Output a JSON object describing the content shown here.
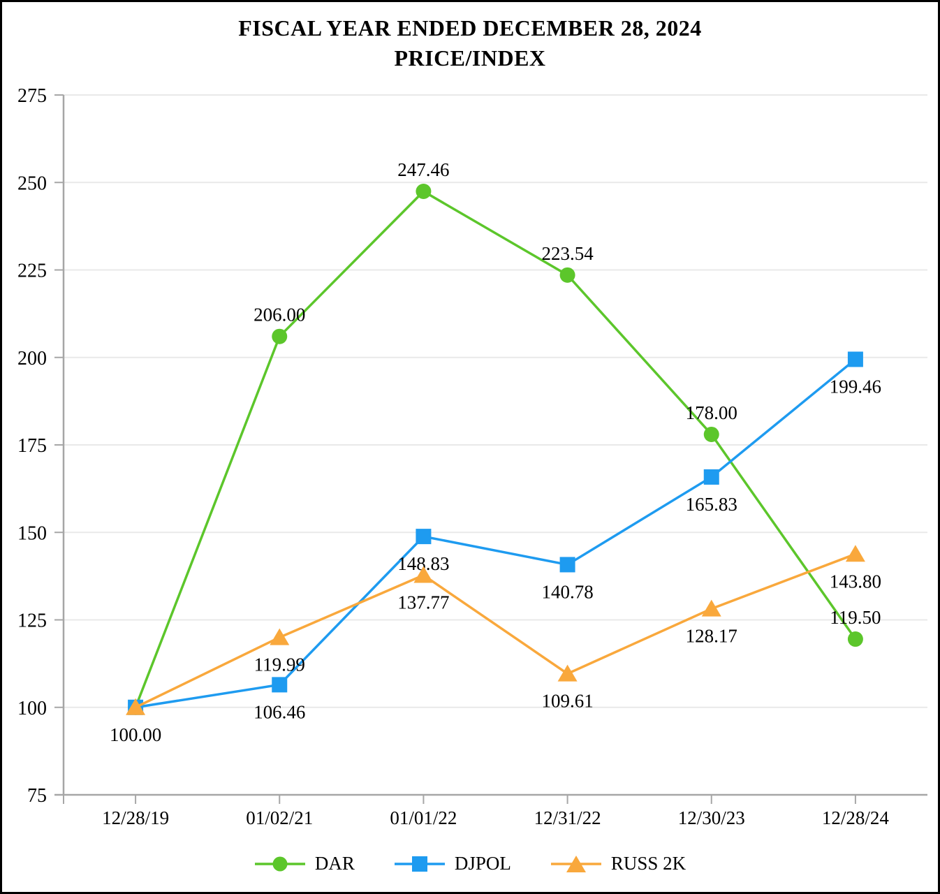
{
  "title": {
    "line1": "FISCAL YEAR ENDED DECEMBER 28, 2024",
    "line2": "PRICE/INDEX"
  },
  "chart_data": {
    "type": "line",
    "title": "FISCAL YEAR ENDED DECEMBER 28, 2024 PRICE/INDEX",
    "xlabel": "",
    "ylabel": "",
    "categories": [
      "12/28/19",
      "01/02/21",
      "01/01/22",
      "12/31/22",
      "12/30/23",
      "12/28/24"
    ],
    "y_axis": {
      "min": 75,
      "max": 275,
      "step": 25,
      "ticks": [
        75,
        100,
        125,
        150,
        175,
        200,
        225,
        250,
        275
      ]
    },
    "grid": true,
    "legend_position": "bottom",
    "series": [
      {
        "name": "DAR",
        "color": "#5CC62B",
        "marker": "circle",
        "values": [
          100.0,
          206.0,
          247.46,
          223.54,
          178.0,
          119.5
        ],
        "labels": [
          "100.00",
          "206.00",
          "247.46",
          "223.54",
          "178.00",
          "119.50"
        ],
        "label_sides": [
          "below",
          "above",
          "above",
          "above",
          "above",
          "above"
        ]
      },
      {
        "name": "DJPOL",
        "color": "#1E9BF0",
        "marker": "square",
        "values": [
          100.0,
          106.46,
          148.83,
          140.78,
          165.83,
          199.46
        ],
        "labels": [
          "",
          "106.46",
          "148.83",
          "140.78",
          "165.83",
          "199.46"
        ],
        "label_sides": [
          "below",
          "below",
          "below",
          "below",
          "below",
          "below"
        ]
      },
      {
        "name": "RUSS 2K",
        "color": "#F9A83C",
        "marker": "triangle",
        "values": [
          100.0,
          119.99,
          137.77,
          109.61,
          128.17,
          143.8
        ],
        "labels": [
          "",
          "119.99",
          "137.77",
          "109.61",
          "128.17",
          "143.80"
        ],
        "label_sides": [
          "below",
          "below",
          "below",
          "below",
          "below",
          "below"
        ]
      }
    ],
    "colors": {
      "axis": "#A6A6A6",
      "grid": "#E9E9E9",
      "text": "#000000"
    }
  }
}
